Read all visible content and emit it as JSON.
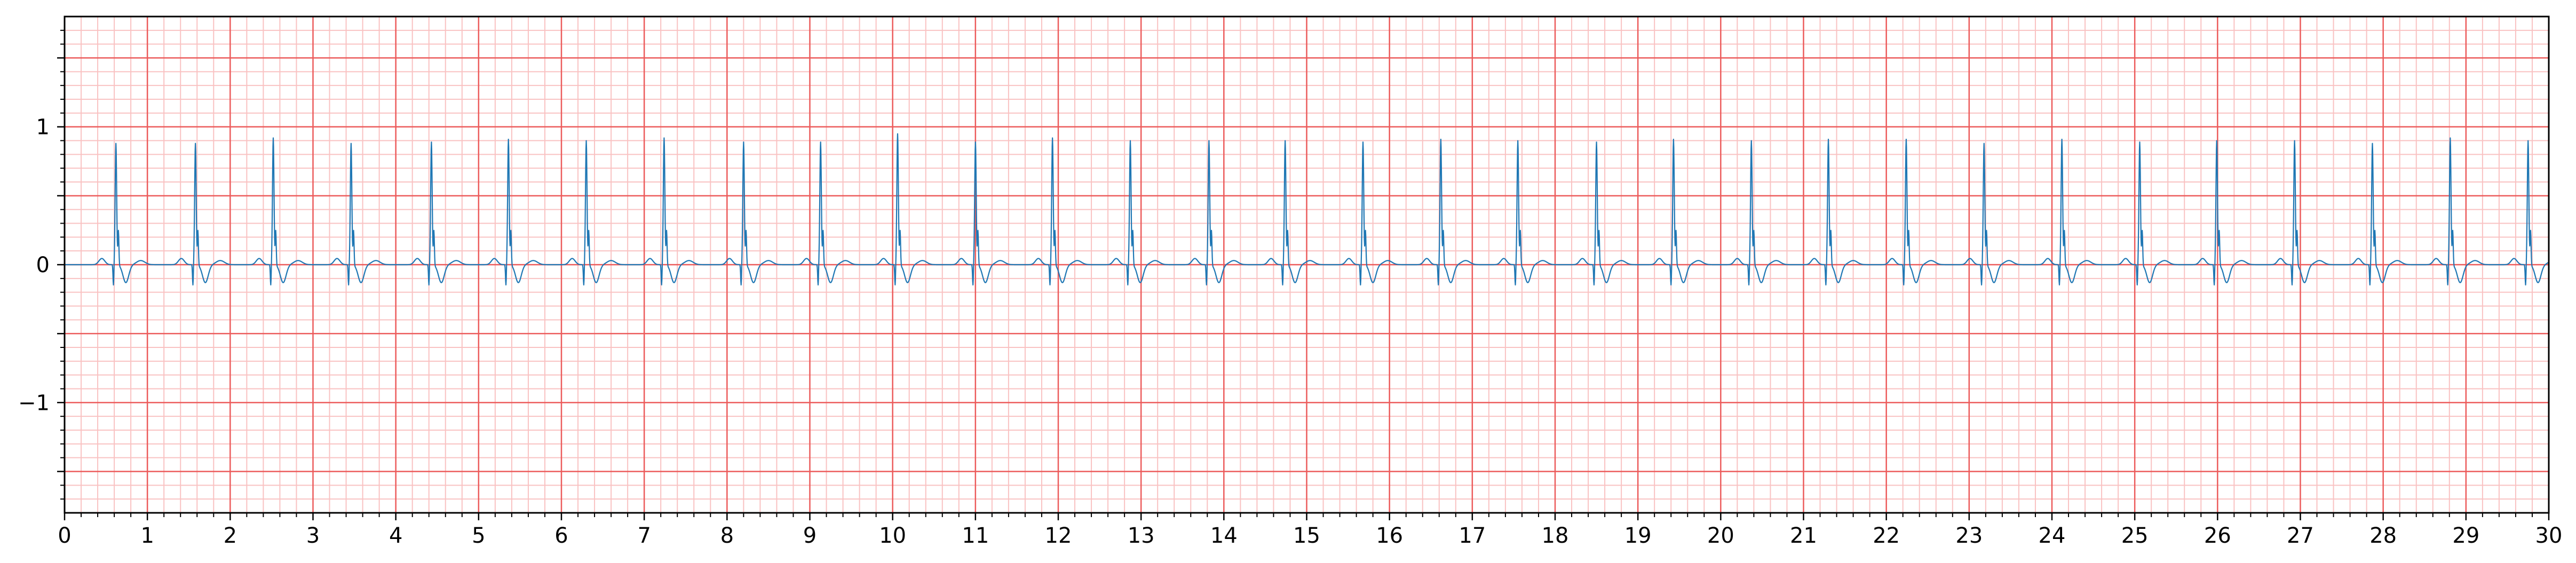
{
  "chart_data": {
    "type": "line",
    "title": "",
    "xlabel": "",
    "ylabel": "",
    "xlim": [
      0,
      30
    ],
    "ylim": [
      -1.8,
      1.8
    ],
    "grid": true,
    "x_ticks": [
      "0",
      "1",
      "2",
      "3",
      "4",
      "5",
      "6",
      "7",
      "8",
      "9",
      "10",
      "11",
      "12",
      "13",
      "14",
      "15",
      "16",
      "17",
      "18",
      "19",
      "20",
      "21",
      "22",
      "23",
      "24",
      "25",
      "26",
      "27",
      "28",
      "29",
      "30"
    ],
    "y_ticks": [
      {
        "value": 1,
        "label": "1"
      },
      {
        "value": 0,
        "label": "0"
      },
      {
        "value": -1,
        "label": "−1"
      }
    ],
    "series": [
      {
        "beat_times": [
          0.62,
          1.58,
          2.52,
          3.46,
          4.43,
          5.36,
          6.3,
          7.24,
          8.2,
          9.13,
          10.06,
          11.0,
          11.93,
          12.87,
          13.82,
          14.74,
          15.68,
          16.62,
          17.55,
          18.5,
          19.43,
          20.37,
          21.3,
          22.24,
          23.18,
          24.12,
          25.06,
          25.99,
          26.93,
          27.87,
          28.81,
          29.75
        ],
        "r_peak_amplitudes": [
          0.88,
          0.88,
          0.92,
          0.88,
          0.89,
          0.91,
          0.9,
          0.92,
          0.89,
          0.89,
          0.95,
          0.89,
          0.92,
          0.9,
          0.9,
          0.9,
          0.89,
          0.91,
          0.9,
          0.89,
          0.91,
          0.9,
          0.91,
          0.91,
          0.88,
          0.91,
          0.89,
          0.9,
          0.9,
          0.88,
          0.92,
          0.9
        ],
        "baseline": 0.0,
        "q_depth": -0.15,
        "s_depth": -0.13
      }
    ]
  },
  "colors": {
    "major_grid": "#ec5b5b",
    "minor_grid": "#f9c2c2",
    "trace": "#1f77b4",
    "axis": "#000000"
  }
}
